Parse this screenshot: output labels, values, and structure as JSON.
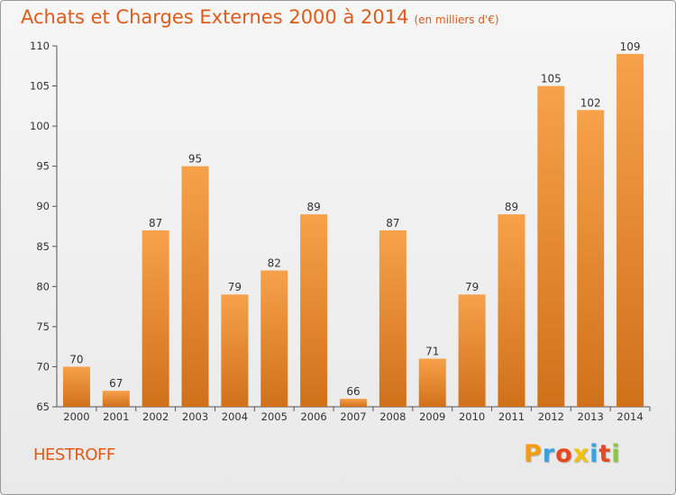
{
  "header": {
    "title": "Achats et Charges Externes 2000 à 2014",
    "subtitle": "(en milliers d'€)"
  },
  "footer": {
    "commune": "HESTROFF",
    "brand_letters": [
      "P",
      "r",
      "o",
      "x",
      "i",
      "t",
      "i"
    ],
    "brand_colors": [
      "#f39c12",
      "#3aa0e0",
      "#e8481f",
      "#f2c200",
      "#3aa0e0",
      "#e8481f",
      "#8cc63f"
    ]
  },
  "chart_data": {
    "type": "bar",
    "categories": [
      "2000",
      "2001",
      "2002",
      "2003",
      "2004",
      "2005",
      "2006",
      "2007",
      "2008",
      "2009",
      "2010",
      "2011",
      "2012",
      "2013",
      "2014"
    ],
    "values": [
      70,
      67,
      87,
      95,
      79,
      82,
      89,
      66,
      87,
      71,
      79,
      89,
      105,
      102,
      109
    ],
    "ylim": [
      65,
      110
    ],
    "yticks": [
      65,
      70,
      75,
      80,
      85,
      90,
      95,
      100,
      105,
      110
    ],
    "title": "Achats et Charges Externes 2000 à 2014",
    "xlabel": "",
    "ylabel": "",
    "grid": false,
    "bar_color": "#f0902e"
  }
}
